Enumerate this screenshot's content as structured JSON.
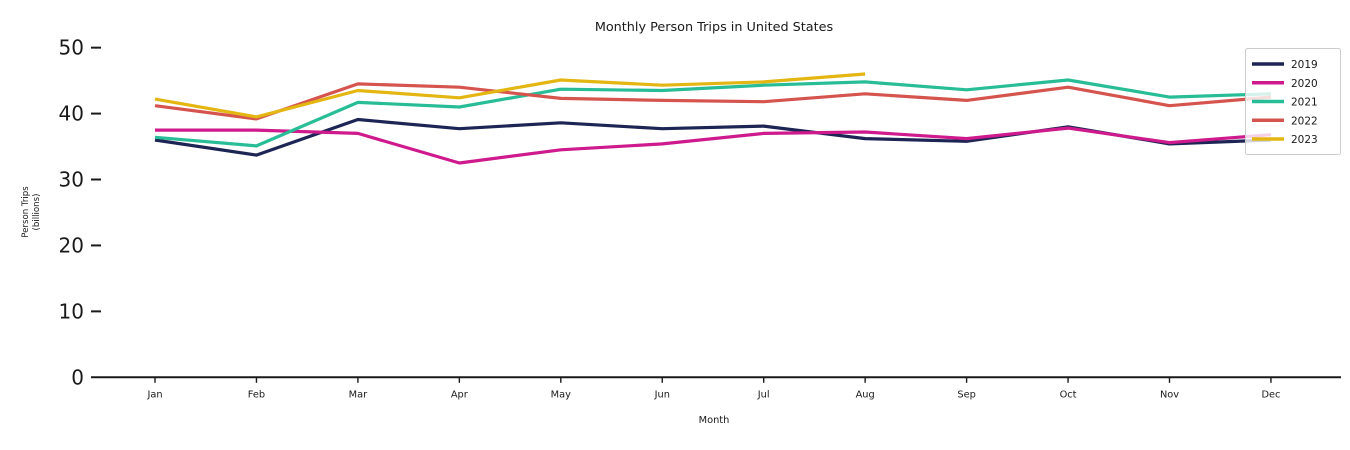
{
  "figure": {
    "background": "#ffffff",
    "text_color": "#1a1a1a",
    "axis_color": "#1a1a1a"
  },
  "chart_data": {
    "type": "line",
    "title": "Monthly Person Trips in United States",
    "xlabel": "Month",
    "ylabel": "Person Trips (billions)",
    "ylabel_lines": [
      "Person Trips",
      "(billions)"
    ],
    "categories": [
      "Jan",
      "Feb",
      "Mar",
      "Apr",
      "May",
      "Jun",
      "Jul",
      "Aug",
      "Sep",
      "Oct",
      "Nov",
      "Dec"
    ],
    "yticks": [
      0,
      10,
      20,
      30,
      40,
      50
    ],
    "ylim": [
      0,
      52
    ],
    "grid": false,
    "legend_position": "upper right",
    "series": [
      {
        "name": "2019",
        "color": "#1d2554",
        "values": [
          36.0,
          33.7,
          39.1,
          37.7,
          38.6,
          37.7,
          38.1,
          36.2,
          35.8,
          38.0,
          35.4,
          36.0
        ]
      },
      {
        "name": "2020",
        "color": "#ce1a8c",
        "values": [
          37.5,
          37.5,
          37.0,
          32.5,
          34.5,
          35.4,
          37.0,
          37.2,
          36.2,
          37.8,
          35.6,
          36.8
        ]
      },
      {
        "name": "2021",
        "color": "#28bd96",
        "values": [
          36.4,
          35.1,
          41.7,
          41.0,
          43.7,
          43.5,
          44.3,
          44.8,
          43.6,
          45.1,
          42.5,
          43.0
        ]
      },
      {
        "name": "2022",
        "color": "#d6544e",
        "values": [
          41.2,
          39.2,
          44.5,
          44.0,
          42.3,
          42.0,
          41.8,
          43.0,
          42.0,
          44.0,
          41.2,
          42.5
        ]
      },
      {
        "name": "2023",
        "color": "#e3b612",
        "values": [
          42.2,
          39.5,
          43.5,
          42.4,
          45.1,
          44.3,
          44.8,
          46.0
        ]
      }
    ]
  }
}
